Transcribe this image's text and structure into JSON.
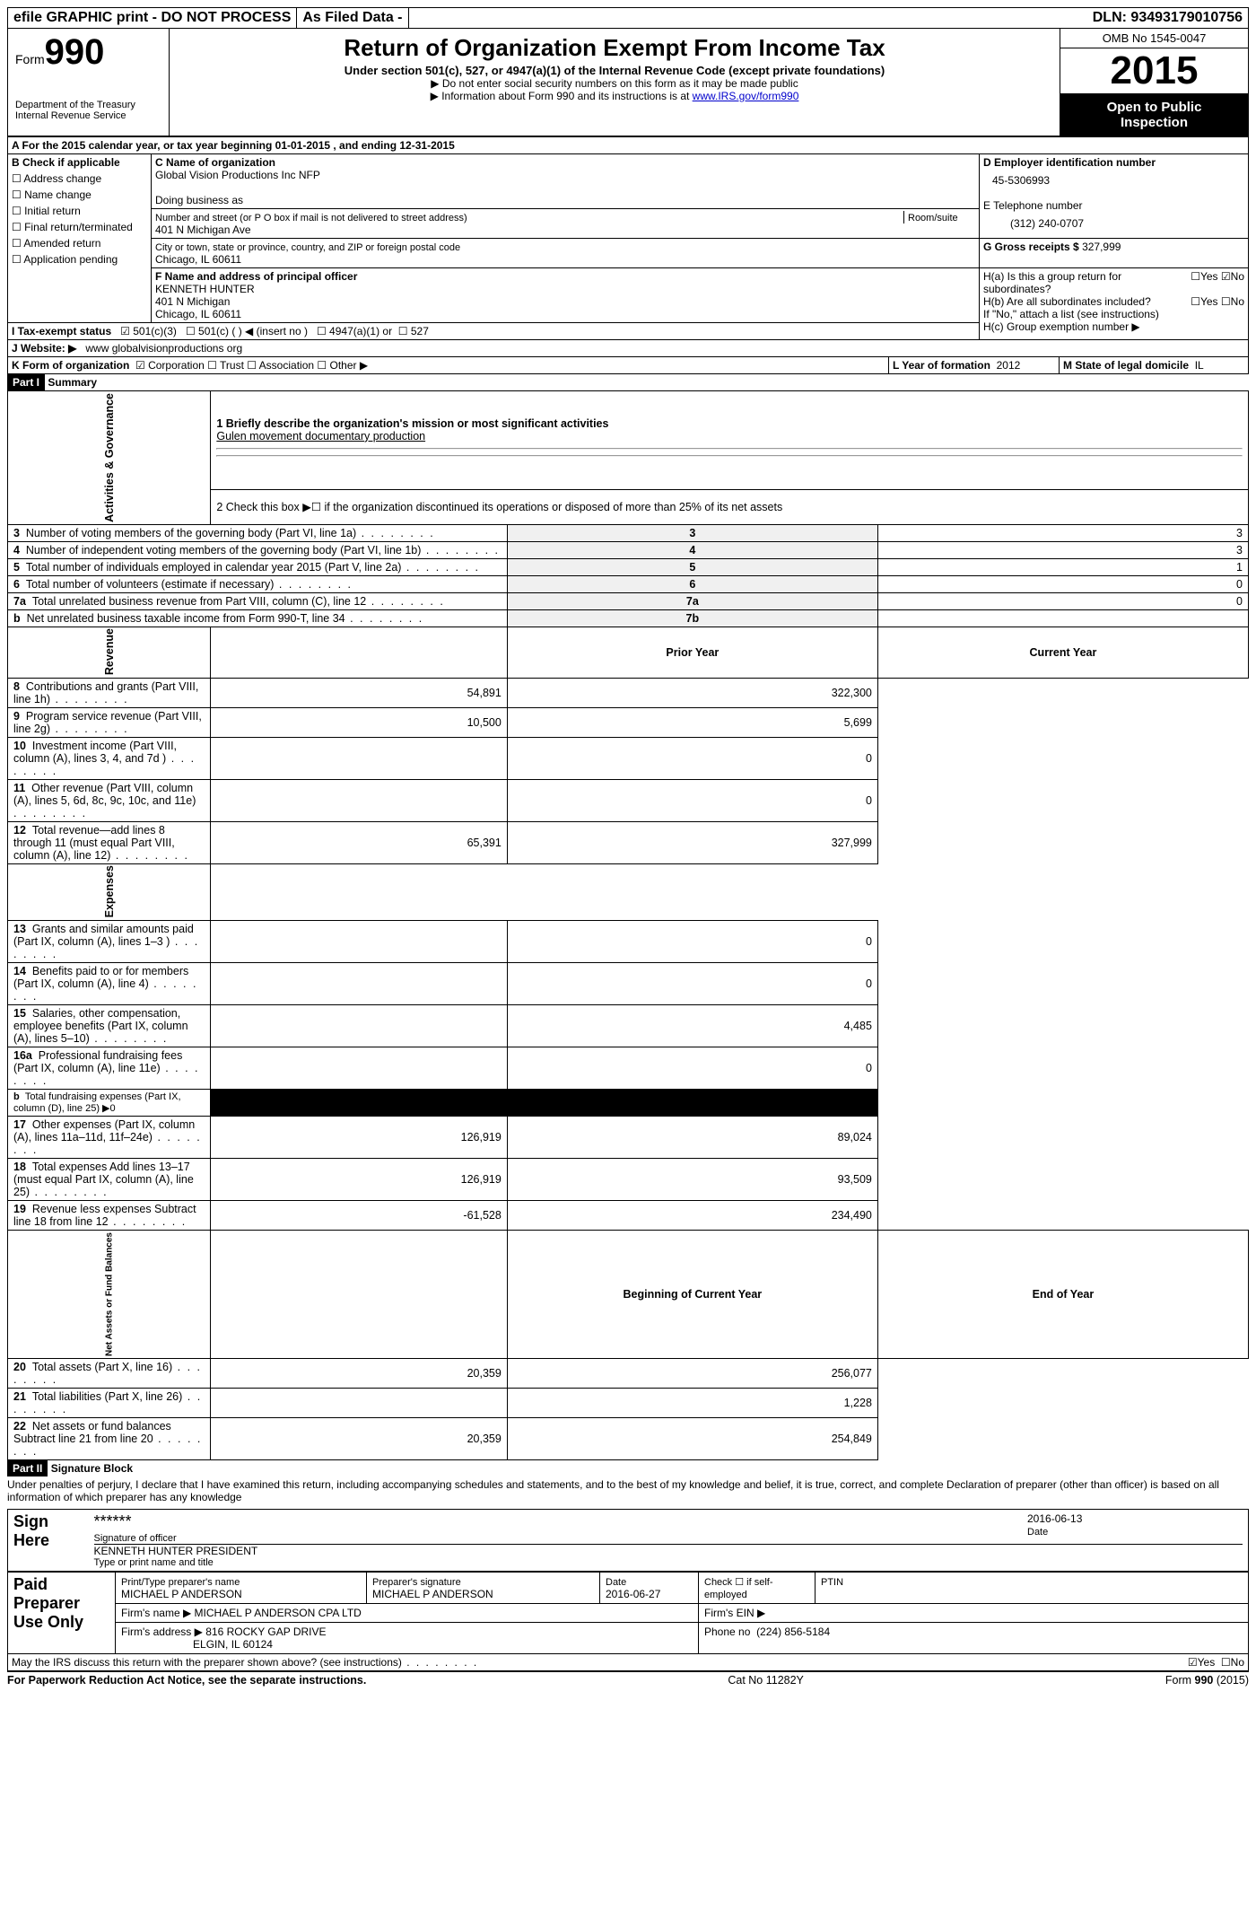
{
  "topbar": {
    "efile": "efile GRAPHIC print - DO NOT PROCESS",
    "asfiled": "As Filed Data -",
    "dln_label": "DLN:",
    "dln": "93493179010756"
  },
  "header": {
    "form_label": "Form",
    "form_no": "990",
    "dept": "Department of the Treasury",
    "irs": "Internal Revenue Service",
    "title": "Return of Organization Exempt From Income Tax",
    "sub1": "Under section 501(c), 527, or 4947(a)(1) of the Internal Revenue Code (except private foundations)",
    "sub2": "▶ Do not enter social security numbers on this form as it may be made public",
    "sub3_pre": "▶ Information about Form 990 and its instructions is at ",
    "sub3_link": "www.IRS.gov/form990",
    "omb": "OMB No 1545-0047",
    "year": "2015",
    "open1": "Open to Public",
    "open2": "Inspection"
  },
  "a": {
    "line": "A   For the 2015 calendar year, or tax year beginning 01-01-2015    , and ending 12-31-2015"
  },
  "b": {
    "title": "B  Check if applicable",
    "opts": [
      "Address change",
      "Name change",
      "Initial return",
      "Final return/terminated",
      "Amended return",
      "Application pending"
    ]
  },
  "c": {
    "label": "C Name of organization",
    "name": "Global Vision Productions Inc NFP",
    "dba_label": "Doing business as",
    "street_label": "Number and street (or P O  box if mail is not delivered to street address)",
    "room_label": "Room/suite",
    "street": "401 N Michigan Ave",
    "city_label": "City or town, state or province, country, and ZIP or foreign postal code",
    "city": "Chicago, IL  60611"
  },
  "d": {
    "label": "D Employer identification number",
    "value": "45-5306993"
  },
  "e": {
    "label": "E Telephone number",
    "value": "(312) 240-0707"
  },
  "g": {
    "label": "G Gross receipts $",
    "value": "327,999"
  },
  "f": {
    "label": "F   Name and address of principal officer",
    "name": "KENNETH HUNTER",
    "addr1": "401 N Michigan",
    "addr2": "Chicago, IL  60611"
  },
  "h": {
    "a": "H(a)  Is this a group return for subordinates?",
    "b": "H(b)  Are all subordinates included?",
    "yn_yes": "Yes",
    "yn_no": "No",
    "note": "If \"No,\" attach a list  (see instructions)",
    "c": "H(c)   Group exemption number ▶"
  },
  "i": {
    "label": "I   Tax-exempt status",
    "o1": "501(c)(3)",
    "o2": "501(c) (  ) ◀ (insert no )",
    "o3": "4947(a)(1) or",
    "o4": "527"
  },
  "j": {
    "label": "J   Website: ▶",
    "value": "www globalvisionproductions org"
  },
  "k": {
    "label": "K Form of organization",
    "o1": "Corporation",
    "o2": "Trust",
    "o3": "Association",
    "o4": "Other ▶",
    "l_label": "L Year of formation",
    "l_val": "2012",
    "m_label": "M State of legal domicile",
    "m_val": "IL"
  },
  "part1": {
    "hdr": "Part I",
    "title": "Summary"
  },
  "summary": {
    "q1": "1 Briefly describe the organization's mission or most significant activities",
    "q1ans": "Gulen movement documentary production",
    "q2": "2  Check this box ▶☐ if the organization discontinued its operations or disposed of more than 25% of its net assets",
    "rows_ag": [
      {
        "n": "3",
        "t": "Number of voting members of the governing body (Part VI, line 1a)",
        "c": "3",
        "v": "3"
      },
      {
        "n": "4",
        "t": "Number of independent voting members of the governing body (Part VI, line 1b)",
        "c": "4",
        "v": "3"
      },
      {
        "n": "5",
        "t": "Total number of individuals employed in calendar year 2015 (Part V, line 2a)",
        "c": "5",
        "v": "1"
      },
      {
        "n": "6",
        "t": "Total number of volunteers (estimate if necessary)",
        "c": "6",
        "v": "0"
      },
      {
        "n": "7a",
        "t": "Total unrelated business revenue from Part VIII, column (C), line 12",
        "c": "7a",
        "v": "0"
      },
      {
        "n": "b",
        "t": "Net unrelated business taxable income from Form 990-T, line 34",
        "c": "7b",
        "v": ""
      }
    ],
    "col_prior": "Prior Year",
    "col_current": "Current Year",
    "rev": [
      {
        "n": "8",
        "t": "Contributions and grants (Part VIII, line 1h)",
        "p": "54,891",
        "c": "322,300"
      },
      {
        "n": "9",
        "t": "Program service revenue (Part VIII, line 2g)",
        "p": "10,500",
        "c": "5,699"
      },
      {
        "n": "10",
        "t": "Investment income (Part VIII, column (A), lines 3, 4, and 7d )",
        "p": "",
        "c": "0"
      },
      {
        "n": "11",
        "t": "Other revenue (Part VIII, column (A), lines 5, 6d, 8c, 9c, 10c, and 11e)",
        "p": "",
        "c": "0"
      },
      {
        "n": "12",
        "t": "Total revenue—add lines 8 through 11 (must equal Part VIII, column (A), line 12)",
        "p": "65,391",
        "c": "327,999"
      }
    ],
    "exp": [
      {
        "n": "13",
        "t": "Grants and similar amounts paid (Part IX, column (A), lines 1–3 )",
        "p": "",
        "c": "0"
      },
      {
        "n": "14",
        "t": "Benefits paid to or for members (Part IX, column (A), line 4)",
        "p": "",
        "c": "0"
      },
      {
        "n": "15",
        "t": "Salaries, other compensation, employee benefits (Part IX, column (A), lines 5–10)",
        "p": "",
        "c": "4,485"
      },
      {
        "n": "16a",
        "t": "Professional fundraising fees (Part IX, column (A), line 11e)",
        "p": "",
        "c": "0"
      },
      {
        "n": "b",
        "t": "Total fundraising expenses (Part IX, column (D), line 25) ▶0",
        "p": "BLACK",
        "c": "BLACK",
        "small": true
      },
      {
        "n": "17",
        "t": "Other expenses (Part IX, column (A), lines 11a–11d, 11f–24e)",
        "p": "126,919",
        "c": "89,024"
      },
      {
        "n": "18",
        "t": "Total expenses  Add lines 13–17 (must equal Part IX, column (A), line 25)",
        "p": "126,919",
        "c": "93,509"
      },
      {
        "n": "19",
        "t": "Revenue less expenses  Subtract line 18 from line 12",
        "p": "-61,528",
        "c": "234,490"
      }
    ],
    "col_beg": "Beginning of Current Year",
    "col_end": "End of Year",
    "na": [
      {
        "n": "20",
        "t": "Total assets (Part X, line 16)",
        "p": "20,359",
        "c": "256,077"
      },
      {
        "n": "21",
        "t": "Total liabilities (Part X, line 26)",
        "p": "",
        "c": "1,228"
      },
      {
        "n": "22",
        "t": "Net assets or fund balances  Subtract line 21 from line 20",
        "p": "20,359",
        "c": "254,849"
      }
    ],
    "side_ag": "Activities & Governance",
    "side_rev": "Revenue",
    "side_exp": "Expenses",
    "side_na": "Net Assets or Fund Balances"
  },
  "part2": {
    "hdr": "Part II",
    "title": "Signature Block",
    "decl": "Under penalties of perjury, I declare that I have examined this return, including accompanying schedules and statements, and to the best of my knowledge and belief, it is true, correct, and complete  Declaration of preparer (other than officer) is based on all information of which preparer has any knowledge"
  },
  "sign": {
    "label": "Sign Here",
    "sig_stars": "******",
    "sig_of": "Signature of officer",
    "date": "2016-06-13",
    "date_lbl": "Date",
    "name": "KENNETH HUNTER  PRESIDENT",
    "name_lbl": "Type or print name and title"
  },
  "paid": {
    "label": "Paid Preparer Use Only",
    "c1": "Print/Type preparer's name",
    "v1": "MICHAEL P ANDERSON",
    "c2": "Preparer's signature",
    "v2": "MICHAEL P ANDERSON",
    "c3": "Date",
    "v3": "2016-06-27",
    "c4": "Check ☐ if self-employed",
    "c5": "PTIN",
    "firm_lbl": "Firm's name    ▶",
    "firm": "MICHAEL P ANDERSON CPA LTD",
    "ein_lbl": "Firm's EIN ▶",
    "addr_lbl": "Firm's address ▶",
    "addr1": "816 ROCKY GAP DRIVE",
    "addr2": "ELGIN, IL  60124",
    "phone_lbl": "Phone no",
    "phone": "(224) 856-5184"
  },
  "discuss": {
    "q": "May the IRS discuss this return with the preparer shown above? (see instructions)",
    "yes": "Yes",
    "no": "No"
  },
  "footer": {
    "left": "For Paperwork Reduction Act Notice, see the separate instructions.",
    "mid": "Cat No  11282Y",
    "right": "Form 990 (2015)"
  }
}
